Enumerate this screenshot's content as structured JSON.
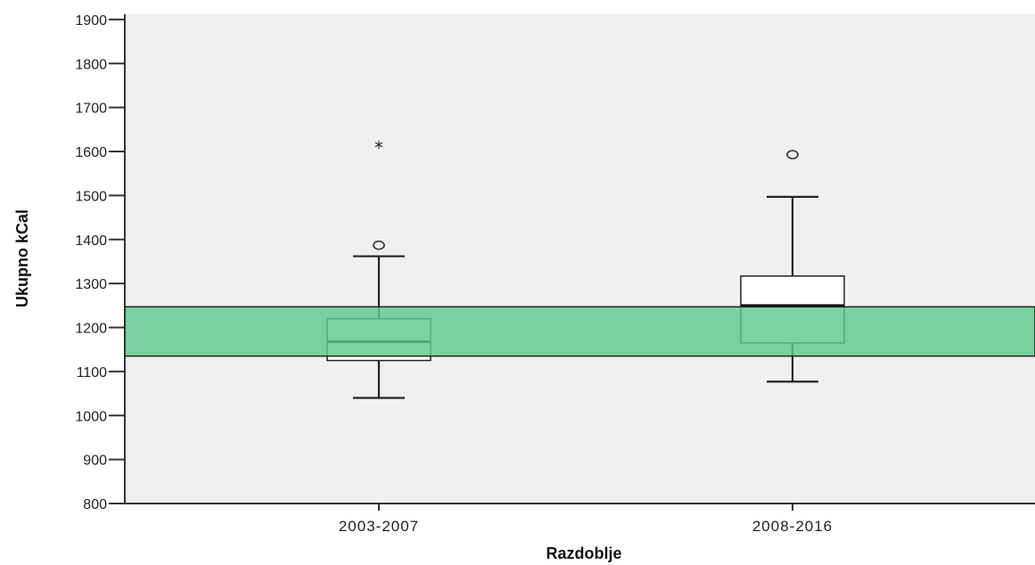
{
  "chart_data": {
    "type": "boxplot",
    "title": "",
    "xlabel": "Razdoblje",
    "ylabel": "Ukupno kCal",
    "ylim": [
      800,
      1900
    ],
    "yticks": [
      800,
      900,
      1000,
      1100,
      1200,
      1300,
      1400,
      1500,
      1600,
      1700,
      1800,
      1900
    ],
    "categories": [
      "2003-2007",
      "2008-2016"
    ],
    "boxes": [
      {
        "category": "2003-2007",
        "whisker_low": 1040,
        "q1": 1125,
        "median": 1168,
        "q3": 1220,
        "whisker_high": 1362,
        "outliers": [
          1387
        ],
        "extremes": [
          1612
        ]
      },
      {
        "category": "2008-2016",
        "whisker_low": 1077,
        "q1": 1165,
        "median": 1250,
        "q3": 1317,
        "whisker_high": 1497,
        "outliers": [
          1593
        ],
        "extremes": []
      }
    ],
    "reference_band": {
      "low": 1135,
      "high": 1247,
      "color": "#5fc98c"
    },
    "plot_background": "#f0f0f0",
    "grid": false,
    "legend": "none",
    "outlier_marker": "○",
    "extreme_marker": "*"
  }
}
